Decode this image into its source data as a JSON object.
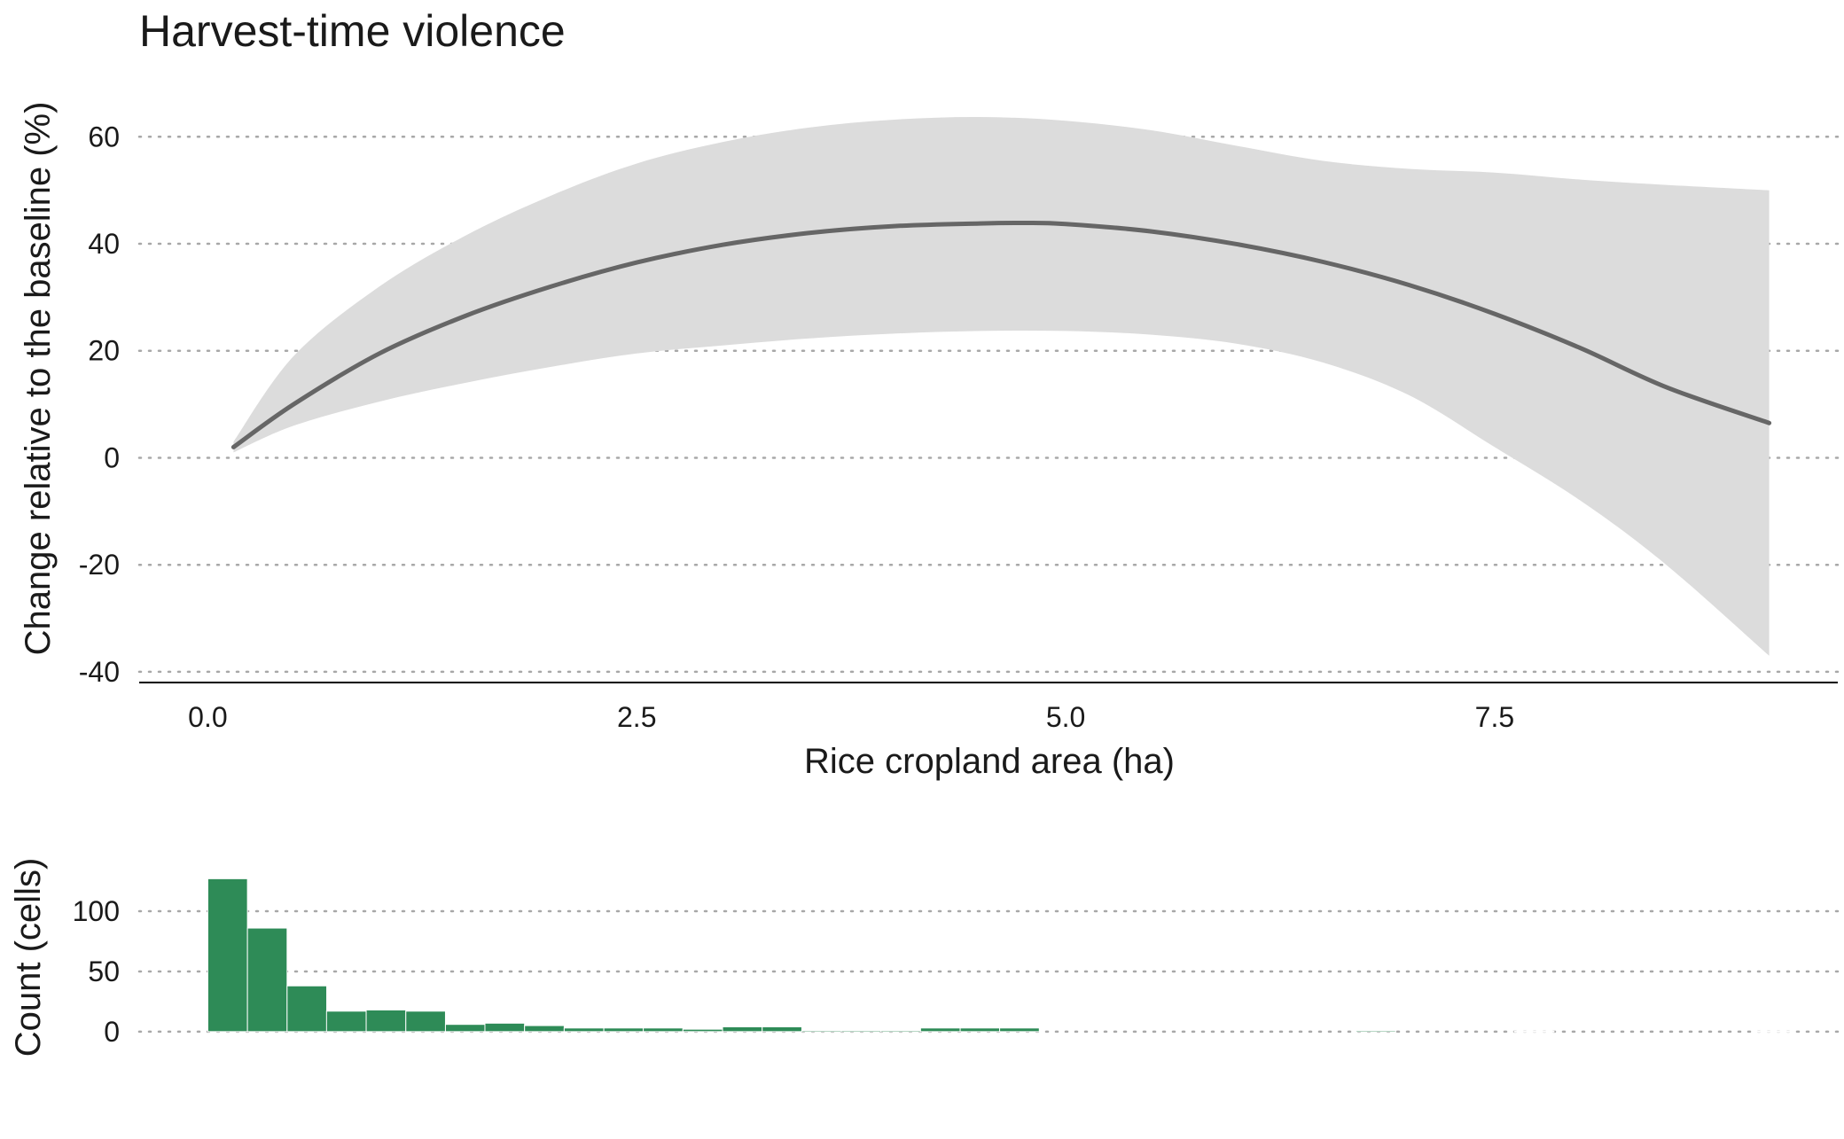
{
  "chart_data": [
    {
      "type": "line",
      "title": "Harvest-time violence",
      "xlabel": "Rice cropland area (ha)",
      "ylabel": "Change relative to the baseline (%)",
      "xlim": [
        -0.4,
        9.5
      ],
      "ylim": [
        -42,
        68
      ],
      "x_ticks": [
        0.0,
        2.5,
        5.0,
        7.5
      ],
      "x_tick_labels": [
        "0.0",
        "2.5",
        "5.0",
        "7.5"
      ],
      "y_ticks": [
        -40,
        -20,
        0,
        20,
        40,
        60
      ],
      "y_tick_labels": [
        "-40",
        "-20",
        "0",
        "20",
        "40",
        "60"
      ],
      "grid": "horizontal dotted",
      "colors": {
        "line": "#666666",
        "ribbon": "#dcdcdc",
        "grid": "#a8a8a8"
      },
      "series": [
        {
          "x": [
            0.15,
            0.5,
            1.0,
            1.5,
            2.0,
            2.5,
            3.0,
            3.5,
            4.0,
            4.5,
            4.75,
            5.0,
            5.5,
            6.0,
            6.5,
            7.0,
            7.5,
            8.0,
            8.5,
            9.1
          ],
          "y": [
            2,
            10,
            19.5,
            26.5,
            32,
            36.5,
            39.8,
            42,
            43.3,
            43.8,
            43.9,
            43.7,
            42.3,
            39.9,
            36.6,
            32.3,
            26.9,
            20.5,
            13.2,
            6.5
          ]
        }
      ],
      "ribbon": {
        "x": [
          0.15,
          0.5,
          1.0,
          1.5,
          2.0,
          2.5,
          3.0,
          3.5,
          4.0,
          4.5,
          5.0,
          5.5,
          6.0,
          6.5,
          7.0,
          7.5,
          8.0,
          8.5,
          9.1
        ],
        "upper": [
          3,
          19,
          32,
          41.5,
          49,
          55,
          59,
          61.7,
          63.2,
          63.7,
          63,
          61.2,
          58.3,
          55.5,
          54,
          53.3,
          52,
          51,
          50
        ],
        "lower": [
          1,
          6,
          10.5,
          14,
          17,
          19.5,
          21,
          22.3,
          23.2,
          23.7,
          23.7,
          23,
          21.3,
          17.8,
          11.7,
          2,
          -8,
          -20,
          -37
        ]
      }
    },
    {
      "type": "bar",
      "ylabel": "Count (cells)",
      "ylim": [
        -6,
        128
      ],
      "y_ticks": [
        0,
        50,
        100
      ],
      "y_tick_labels": [
        "0",
        "50",
        "100"
      ],
      "bin_width": 0.231,
      "colors": {
        "bar": "#2e8b57",
        "bar_edge": "#ffffff"
      },
      "bins_start": [
        0.0,
        0.231,
        0.462,
        0.692,
        0.923,
        1.154,
        1.385,
        1.615,
        1.846,
        2.077,
        2.308,
        2.538,
        2.769,
        3.0,
        3.231,
        3.462,
        3.692,
        3.923,
        4.154,
        4.385,
        4.615,
        6.692,
        7.615,
        9.0
      ],
      "values": [
        127,
        86,
        38,
        17,
        18,
        17,
        6,
        7,
        5,
        3,
        3,
        3,
        2,
        4,
        4,
        1,
        1,
        1,
        3,
        3,
        3,
        1,
        0.4,
        0.4
      ]
    }
  ]
}
